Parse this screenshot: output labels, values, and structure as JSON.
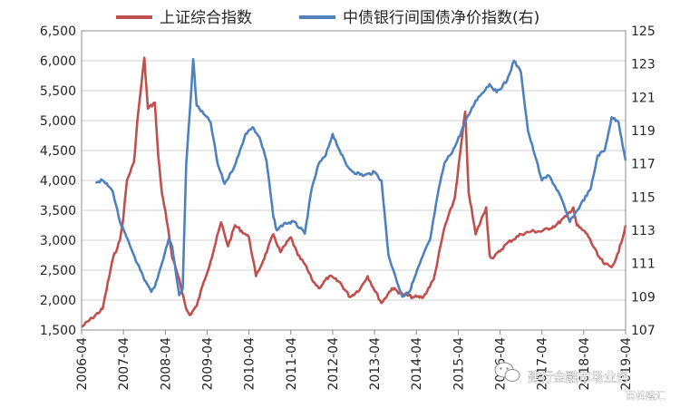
{
  "chart_data": {
    "type": "line",
    "legend": {
      "placement": "top"
    },
    "grid": true,
    "x": {
      "tick_labels": [
        "2006-04",
        "2007-04",
        "2008-04",
        "2009-04",
        "2010-04",
        "2011-04",
        "2012-04",
        "2013-04",
        "2014-04",
        "2015-04",
        "2016-04",
        "2017-04",
        "2018-04",
        "2019-04"
      ],
      "range": [
        "2006-04",
        "2019-04"
      ]
    },
    "y_left": {
      "tick_labels": [
        "1,500",
        "2,000",
        "2,500",
        "3,000",
        "3,500",
        "4,000",
        "4,500",
        "5,000",
        "5,500",
        "6,000",
        "6,500"
      ],
      "range": [
        1500,
        6500
      ]
    },
    "y_right": {
      "tick_labels": [
        "107",
        "109",
        "111",
        "113",
        "115",
        "117",
        "119",
        "121",
        "123",
        "125"
      ],
      "range": [
        107,
        125
      ]
    },
    "series": [
      {
        "name": "上证综合指数",
        "axis": "left",
        "color": "#C0504D",
        "points": [
          [
            "2006-04",
            1550
          ],
          [
            "2006-07",
            1700
          ],
          [
            "2006-10",
            1850
          ],
          [
            "2007-01",
            2700
          ],
          [
            "2007-03",
            3000
          ],
          [
            "2007-04",
            3400
          ],
          [
            "2007-05",
            4000
          ],
          [
            "2007-07",
            4300
          ],
          [
            "2007-08",
            5000
          ],
          [
            "2007-10",
            6050
          ],
          [
            "2007-11",
            5200
          ],
          [
            "2008-01",
            5300
          ],
          [
            "2008-02",
            4400
          ],
          [
            "2008-03",
            3800
          ],
          [
            "2008-04",
            3500
          ],
          [
            "2008-06",
            2700
          ],
          [
            "2008-08",
            2350
          ],
          [
            "2008-10",
            1850
          ],
          [
            "2008-11",
            1750
          ],
          [
            "2009-01",
            1900
          ],
          [
            "2009-03",
            2300
          ],
          [
            "2009-05",
            2650
          ],
          [
            "2009-08",
            3300
          ],
          [
            "2009-10",
            2900
          ],
          [
            "2009-12",
            3250
          ],
          [
            "2010-03",
            3100
          ],
          [
            "2010-04",
            3050
          ],
          [
            "2010-06",
            2400
          ],
          [
            "2010-08",
            2650
          ],
          [
            "2010-11",
            3100
          ],
          [
            "2011-01",
            2800
          ],
          [
            "2011-04",
            3050
          ],
          [
            "2011-06",
            2750
          ],
          [
            "2011-08",
            2600
          ],
          [
            "2011-10",
            2350
          ],
          [
            "2011-12",
            2200
          ],
          [
            "2012-03",
            2400
          ],
          [
            "2012-06",
            2300
          ],
          [
            "2012-09",
            2050
          ],
          [
            "2012-12",
            2200
          ],
          [
            "2013-02",
            2400
          ],
          [
            "2013-06",
            1950
          ],
          [
            "2013-09",
            2200
          ],
          [
            "2013-12",
            2100
          ],
          [
            "2014-03",
            2050
          ],
          [
            "2014-06",
            2050
          ],
          [
            "2014-09",
            2350
          ],
          [
            "2014-12",
            3200
          ],
          [
            "2015-03",
            3700
          ],
          [
            "2015-06",
            5150
          ],
          [
            "2015-07",
            3800
          ],
          [
            "2015-09",
            3100
          ],
          [
            "2015-12",
            3550
          ],
          [
            "2016-01",
            2750
          ],
          [
            "2016-02",
            2700
          ],
          [
            "2016-06",
            2950
          ],
          [
            "2016-10",
            3100
          ],
          [
            "2017-01",
            3150
          ],
          [
            "2017-04",
            3150
          ],
          [
            "2017-08",
            3250
          ],
          [
            "2017-11",
            3400
          ],
          [
            "2018-01",
            3550
          ],
          [
            "2018-02",
            3250
          ],
          [
            "2018-05",
            3100
          ],
          [
            "2018-08",
            2750
          ],
          [
            "2018-10",
            2600
          ],
          [
            "2018-12",
            2550
          ],
          [
            "2019-02",
            2800
          ],
          [
            "2019-04",
            3250
          ]
        ]
      },
      {
        "name": "中债银行间国债净价指数(右)",
        "axis": "right",
        "color": "#4F81BD",
        "points": [
          [
            "2006-08",
            115.9
          ],
          [
            "2006-10",
            116.0
          ],
          [
            "2006-12",
            115.6
          ],
          [
            "2007-01",
            115.3
          ],
          [
            "2007-03",
            113.5
          ],
          [
            "2007-06",
            112.0
          ],
          [
            "2007-08",
            111.0
          ],
          [
            "2007-10",
            110.0
          ],
          [
            "2007-12",
            109.3
          ],
          [
            "2008-01",
            109.6
          ],
          [
            "2008-03",
            111.0
          ],
          [
            "2008-05",
            112.5
          ],
          [
            "2008-06",
            112.0
          ],
          [
            "2008-07",
            110.5
          ],
          [
            "2008-08",
            109.1
          ],
          [
            "2008-09",
            109.5
          ],
          [
            "2008-10",
            117.0
          ],
          [
            "2008-11",
            120.0
          ],
          [
            "2008-12",
            123.3
          ],
          [
            "2009-01",
            120.5
          ],
          [
            "2009-03",
            120.0
          ],
          [
            "2009-05",
            119.5
          ],
          [
            "2009-07",
            117.0
          ],
          [
            "2009-09",
            115.8
          ],
          [
            "2009-11",
            116.5
          ],
          [
            "2010-01",
            117.5
          ],
          [
            "2010-03",
            118.8
          ],
          [
            "2010-05",
            119.2
          ],
          [
            "2010-07",
            118.6
          ],
          [
            "2010-09",
            117.2
          ],
          [
            "2010-11",
            113.8
          ],
          [
            "2010-12",
            113.0
          ],
          [
            "2011-02",
            113.4
          ],
          [
            "2011-05",
            113.5
          ],
          [
            "2011-08",
            112.8
          ],
          [
            "2011-10",
            115.5
          ],
          [
            "2011-12",
            117.0
          ],
          [
            "2012-02",
            117.5
          ],
          [
            "2012-04",
            118.8
          ],
          [
            "2012-06",
            117.8
          ],
          [
            "2012-08",
            116.9
          ],
          [
            "2012-10",
            116.5
          ],
          [
            "2013-01",
            116.3
          ],
          [
            "2013-04",
            116.5
          ],
          [
            "2013-06",
            116.0
          ],
          [
            "2013-08",
            111.5
          ],
          [
            "2013-10",
            110.2
          ],
          [
            "2013-12",
            109.0
          ],
          [
            "2014-02",
            109.3
          ],
          [
            "2014-05",
            111.0
          ],
          [
            "2014-08",
            112.5
          ],
          [
            "2014-10",
            115.0
          ],
          [
            "2014-12",
            117.0
          ],
          [
            "2015-03",
            118.0
          ],
          [
            "2015-06",
            119.5
          ],
          [
            "2015-09",
            120.8
          ],
          [
            "2016-01",
            121.8
          ],
          [
            "2016-03",
            121.3
          ],
          [
            "2016-06",
            122.0
          ],
          [
            "2016-08",
            123.2
          ],
          [
            "2016-10",
            122.5
          ],
          [
            "2016-12",
            119.0
          ],
          [
            "2017-02",
            117.5
          ],
          [
            "2017-04",
            116.0
          ],
          [
            "2017-06",
            116.3
          ],
          [
            "2017-09",
            115.2
          ],
          [
            "2017-12",
            113.5
          ],
          [
            "2018-03",
            114.5
          ],
          [
            "2018-06",
            115.5
          ],
          [
            "2018-08",
            117.5
          ],
          [
            "2018-10",
            117.8
          ],
          [
            "2018-12",
            119.8
          ],
          [
            "2019-02",
            119.5
          ],
          [
            "2019-04",
            117.2
          ]
        ]
      }
    ]
  },
  "watermark": {
    "account_name": "建行金融市场业务",
    "author": "苗格隆汇",
    "icon": "wechat-icon"
  }
}
